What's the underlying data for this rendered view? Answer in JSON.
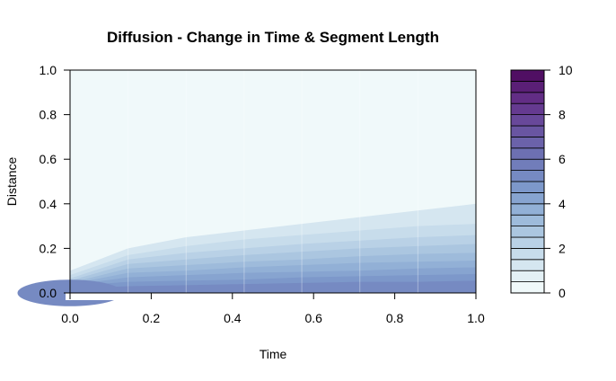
{
  "chart_data": {
    "type": "heatmap",
    "subtype": "filled-contour",
    "title": "Diffusion - Change in Time & Segment Length",
    "xlabel": "Time",
    "ylabel": "Distance",
    "xlim": [
      0,
      1
    ],
    "ylim": [
      0,
      1
    ],
    "x_ticks": [
      "0.0",
      "0.2",
      "0.4",
      "0.6",
      "0.8",
      "1.0"
    ],
    "y_ticks": [
      "0.0",
      "0.2",
      "0.4",
      "0.6",
      "0.8",
      "1.0"
    ],
    "x": [
      0,
      0.143,
      0.286,
      0.429,
      0.571,
      0.714,
      0.857,
      1.0
    ],
    "contour_boundaries": {
      "levels": [
        0.5,
        1.0,
        1.5,
        2.0,
        2.5,
        3.0,
        3.5,
        4.0,
        4.5
      ],
      "distance_at_x": [
        [
          0.1,
          0.2,
          0.25,
          0.28,
          0.31,
          0.34,
          0.37,
          0.4
        ],
        [
          0.08,
          0.17,
          0.21,
          0.24,
          0.26,
          0.28,
          0.3,
          0.31
        ],
        [
          0.065,
          0.15,
          0.18,
          0.2,
          0.22,
          0.235,
          0.25,
          0.26
        ],
        [
          0.055,
          0.13,
          0.15,
          0.17,
          0.185,
          0.2,
          0.21,
          0.22
        ],
        [
          0.045,
          0.11,
          0.125,
          0.14,
          0.15,
          0.165,
          0.175,
          0.18
        ],
        [
          0.04,
          0.09,
          0.1,
          0.115,
          0.125,
          0.135,
          0.14,
          0.145
        ],
        [
          0.035,
          0.07,
          0.08,
          0.09,
          0.095,
          0.1,
          0.11,
          0.115
        ],
        [
          0.03,
          0.05,
          0.055,
          0.06,
          0.07,
          0.075,
          0.08,
          0.085
        ],
        [
          0.02,
          0.03,
          0.035,
          0.04,
          0.045,
          0.05,
          0.05,
          0.055
        ]
      ]
    },
    "initial_peak": {
      "time": 0,
      "distance": 0,
      "value": 10
    },
    "colorbar": {
      "ticks": [
        "0",
        "2",
        "4",
        "6",
        "8",
        "10"
      ],
      "range": [
        0,
        10
      ],
      "n_levels": 20,
      "colors": [
        "#f0f9fa",
        "#e3f0f5",
        "#d5e6f0",
        "#c7dceb",
        "#b9d1e6",
        "#abc6e0",
        "#9ebbdb",
        "#92b0d6",
        "#87a4d0",
        "#7d98ca",
        "#768ac2",
        "#717dba",
        "#6d70b2",
        "#6b62aa",
        "#6955a2",
        "#68489a",
        "#653a90",
        "#622d85",
        "#5a1f76",
        "#500f63"
      ]
    }
  }
}
